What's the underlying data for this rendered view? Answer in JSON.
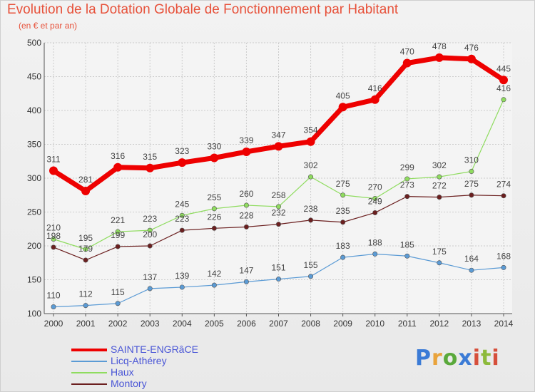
{
  "title": "Evolution de la Dotation Globale de Fonctionnement par Habitant",
  "subtitle": "(en € et par an)",
  "logo_text": "Proxiti",
  "chart_data": {
    "type": "line",
    "x": [
      "2000",
      "2001",
      "2002",
      "2003",
      "2004",
      "2005",
      "2006",
      "2007",
      "2008",
      "2009",
      "2010",
      "2011",
      "2012",
      "2013",
      "2014"
    ],
    "ylim": [
      100,
      500
    ],
    "yticks": [
      100,
      150,
      200,
      250,
      300,
      350,
      400,
      450,
      500
    ],
    "grid": true,
    "legend_position": "bottom-left",
    "series": [
      {
        "name": "SAINTE-ENGRâCE",
        "color": "#ee0000",
        "values": [
          311,
          281,
          316,
          315,
          323,
          330,
          339,
          347,
          354,
          405,
          416,
          470,
          478,
          476,
          445
        ]
      },
      {
        "name": "Licq-Athérey",
        "color": "#5b9bd5",
        "values": [
          110,
          112,
          115,
          137,
          139,
          142,
          147,
          151,
          155,
          183,
          188,
          185,
          175,
          164,
          168
        ]
      },
      {
        "name": "Haux",
        "color": "#8fdc5f",
        "values": [
          210,
          195,
          221,
          223,
          245,
          255,
          260,
          258,
          302,
          275,
          270,
          299,
          302,
          310,
          416
        ]
      },
      {
        "name": "Montory",
        "color": "#6b1f1f",
        "values": [
          198,
          179,
          199,
          200,
          223,
          226,
          228,
          232,
          238,
          235,
          249,
          273,
          272,
          275,
          274
        ]
      }
    ]
  }
}
